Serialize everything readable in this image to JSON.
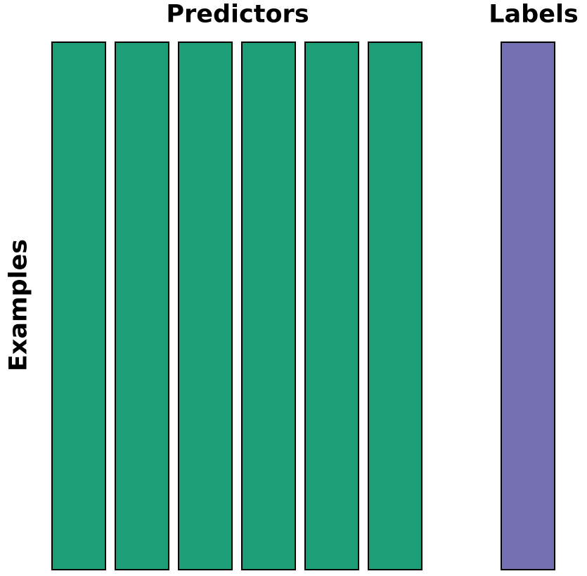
{
  "headings": {
    "predictors": "Predictors",
    "labels": "Labels",
    "examples": "Examples"
  },
  "colors": {
    "predictor_fill": "#1c9f77",
    "label_fill": "#7571b0",
    "stroke": "#000000",
    "background": "#ffffff"
  },
  "predictor_columns": [
    {
      "id": "predictor-1"
    },
    {
      "id": "predictor-2"
    },
    {
      "id": "predictor-3"
    },
    {
      "id": "predictor-4"
    },
    {
      "id": "predictor-5"
    },
    {
      "id": "predictor-6"
    }
  ],
  "label_columns": [
    {
      "id": "label-1"
    }
  ]
}
